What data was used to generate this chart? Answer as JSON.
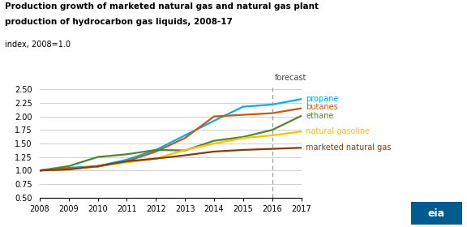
{
  "title_line1": "Production growth of marketed natural gas and natural gas plant",
  "title_line2": "production of hydrocarbon gas liquids, 2008-17",
  "ylabel": "index, 2008=1.0",
  "years": [
    2008,
    2009,
    2010,
    2011,
    2012,
    2013,
    2014,
    2015,
    2016,
    2017
  ],
  "forecast_year": 2016,
  "series": [
    {
      "key": "propane",
      "color": "#00aeef",
      "label": "propane",
      "values": [
        1.0,
        1.05,
        1.08,
        1.2,
        1.38,
        1.65,
        1.92,
        2.18,
        2.22,
        2.32
      ]
    },
    {
      "key": "butanes",
      "color": "#c55a11",
      "label": "butanes",
      "values": [
        1.0,
        1.04,
        1.07,
        1.17,
        1.35,
        1.6,
        2.0,
        2.03,
        2.06,
        2.15
      ]
    },
    {
      "key": "ethane",
      "color": "#548235",
      "label": "ethane",
      "values": [
        1.0,
        1.08,
        1.25,
        1.3,
        1.38,
        1.37,
        1.55,
        1.62,
        1.75,
        2.01
      ]
    },
    {
      "key": "natural_gasoline",
      "color": "#ffc000",
      "label": "natural gasoline",
      "values": [
        1.0,
        1.02,
        1.08,
        1.15,
        1.22,
        1.38,
        1.5,
        1.6,
        1.65,
        1.72
      ]
    },
    {
      "key": "marketed_natural_gas",
      "color": "#843c0c",
      "label": "marketed natural gas",
      "values": [
        1.0,
        1.02,
        1.08,
        1.17,
        1.22,
        1.28,
        1.35,
        1.38,
        1.4,
        1.42
      ]
    }
  ],
  "label_y_positions": [
    2.32,
    2.18,
    2.01,
    1.72,
    1.42
  ],
  "ylim": [
    0.5,
    2.6
  ],
  "yticks": [
    0.5,
    0.75,
    1.0,
    1.25,
    1.5,
    1.75,
    2.0,
    2.25,
    2.5
  ],
  "background_color": "#ffffff",
  "grid_color": "#c8c8c8",
  "forecast_label": "forecast",
  "eia_logo_color": "#005b8e"
}
